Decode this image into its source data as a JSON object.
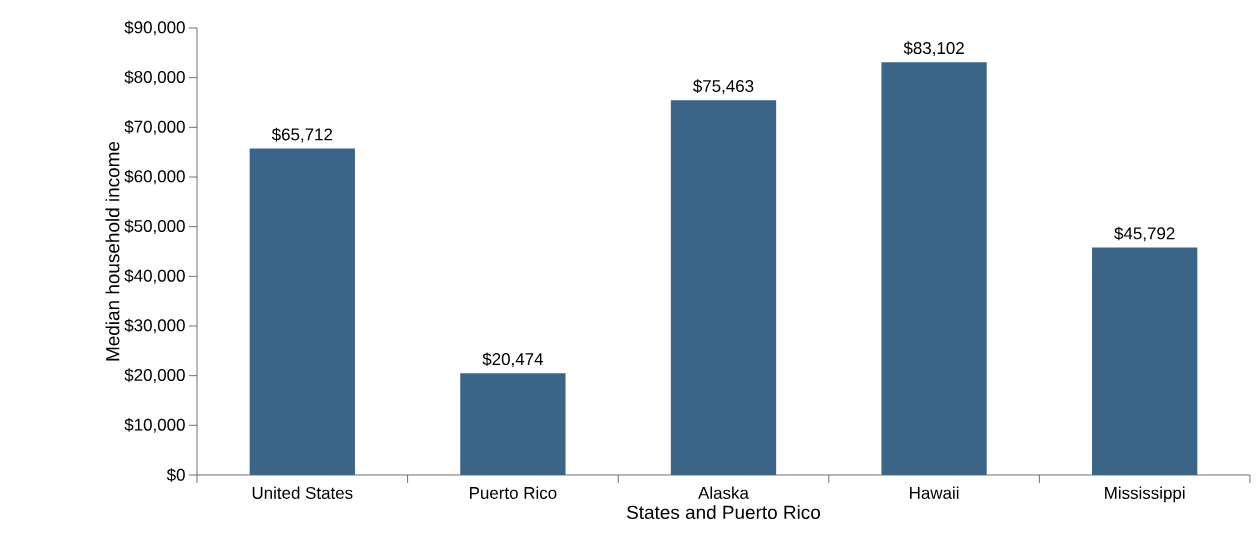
{
  "chart_data": {
    "type": "bar",
    "xlabel": "States and Puerto Rico",
    "ylabel": "Median household income",
    "categories": [
      "United States",
      "Puerto Rico",
      "Alaska",
      "Hawaii",
      "Mississippi"
    ],
    "values": [
      65712,
      20474,
      75463,
      83102,
      45792
    ],
    "value_labels": [
      "$65,712",
      "$20,474",
      "$75,463",
      "$83,102",
      "$45,792"
    ],
    "color": "#3a6587",
    "ylim": [
      0,
      90000
    ],
    "yticks": [
      {
        "value": 0,
        "label": "$0"
      },
      {
        "value": 10000,
        "label": "$10,000"
      },
      {
        "value": 20000,
        "label": "$20,000"
      },
      {
        "value": 30000,
        "label": "$30,000"
      },
      {
        "value": 40000,
        "label": "$40,000"
      },
      {
        "value": 50000,
        "label": "$50,000"
      },
      {
        "value": 60000,
        "label": "$60,000"
      },
      {
        "value": 70000,
        "label": "$70,000"
      },
      {
        "value": 80000,
        "label": "$80,000"
      },
      {
        "value": 90000,
        "label": "$90,000"
      }
    ]
  }
}
